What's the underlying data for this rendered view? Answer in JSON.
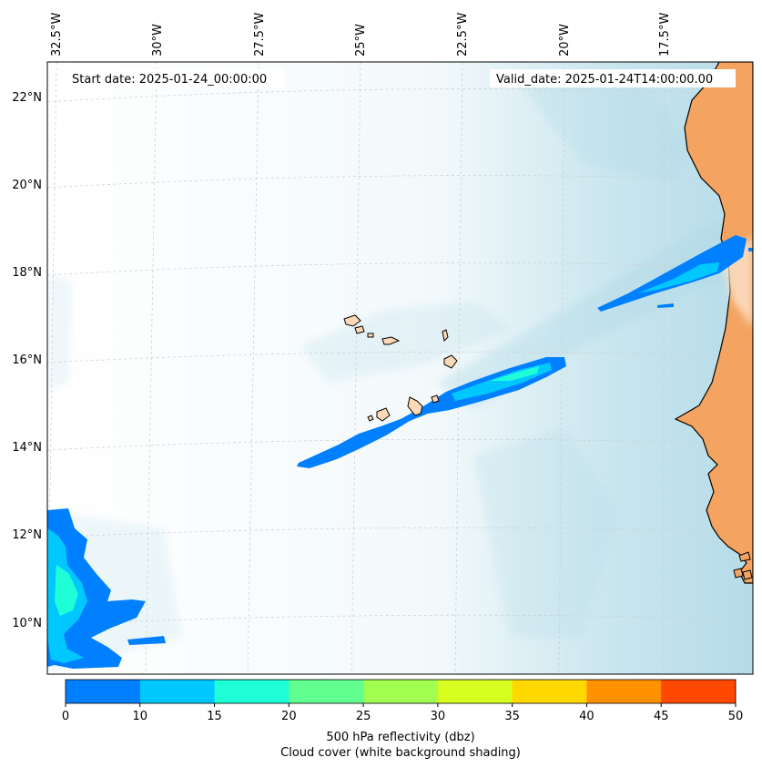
{
  "header": {
    "start_date": "Start date: 2025-01-24_00:00:00",
    "valid_date": "Valid_date: 2025-01-24T14:00:00.00"
  },
  "map": {
    "longitude_labels": [
      "32.5°W",
      "30°W",
      "27.5°W",
      "25°W",
      "22.5°W",
      "20°W",
      "17.5°W"
    ],
    "latitude_labels": [
      "22°N",
      "20°N",
      "18°N",
      "16°N",
      "14°N",
      "12°N",
      "10°N"
    ],
    "colors": {
      "land": "#f4a460",
      "island": "#fcd9b6",
      "cloud": "#add8e6",
      "coastline": "#000000",
      "gridline": "#cccccc"
    }
  },
  "colorbar": {
    "ticks": [
      "0",
      "10",
      "15",
      "20",
      "25",
      "30",
      "35",
      "40",
      "45",
      "50"
    ],
    "colors": [
      "#0080ff",
      "#00c8ff",
      "#1effd8",
      "#60ff90",
      "#a0ff50",
      "#d8ff20",
      "#ffd800",
      "#ff9000",
      "#ff4800"
    ],
    "label_line1": "500 hPa reflectivity (dbz)",
    "label_line2": "Cloud cover (white background shading)"
  }
}
